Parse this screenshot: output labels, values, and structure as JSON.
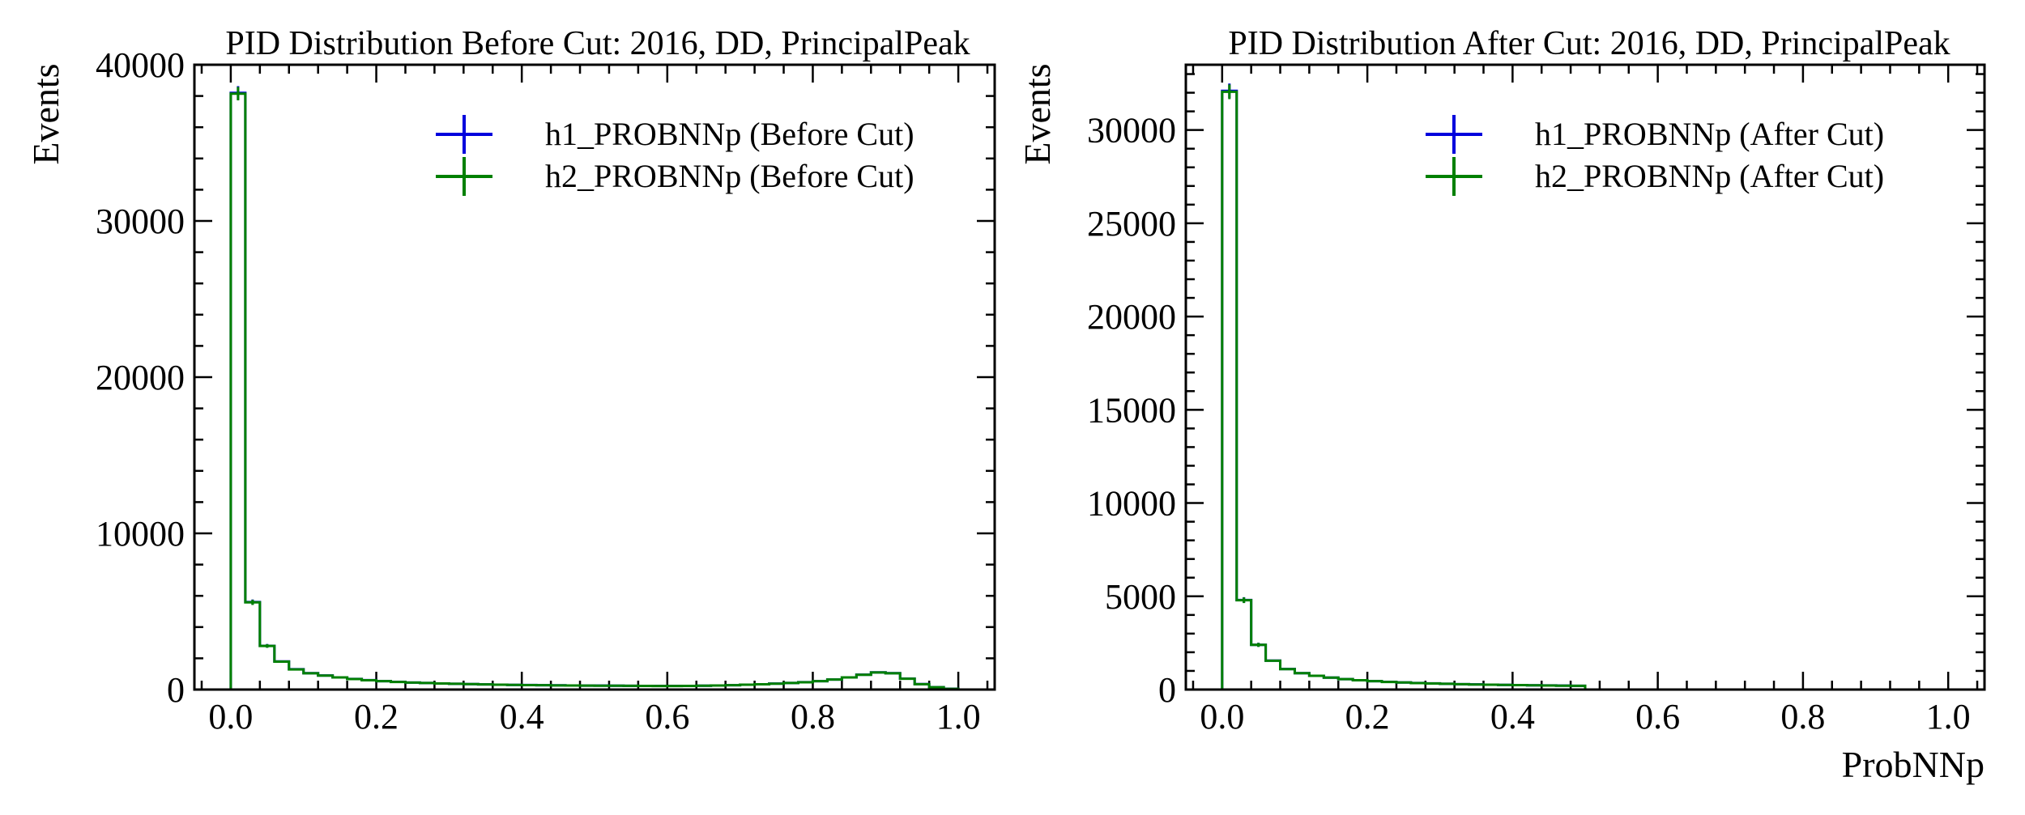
{
  "chart_data": [
    {
      "type": "step-histogram",
      "title": "PID Distribution Before Cut: 2016, DD, PrincipalPeak",
      "xlabel": "",
      "ylabel": "Events",
      "xlim": [
        -0.05,
        1.05
      ],
      "ylim": [
        0,
        40000
      ],
      "xticks": [
        "0.0",
        "0.2",
        "0.4",
        "0.6",
        "0.8",
        "1.0"
      ],
      "yticks": [
        "0",
        "10000",
        "20000",
        "30000",
        "40000"
      ],
      "legend_position": "top-right",
      "bin_edges": [
        0.0,
        0.02,
        0.04,
        0.06,
        0.08,
        0.1,
        0.12,
        0.14,
        0.16,
        0.18,
        0.2,
        0.22,
        0.24,
        0.26,
        0.28,
        0.3,
        0.32,
        0.34,
        0.36,
        0.38,
        0.4,
        0.42,
        0.44,
        0.46,
        0.48,
        0.5,
        0.52,
        0.54,
        0.56,
        0.58,
        0.6,
        0.62,
        0.64,
        0.66,
        0.68,
        0.7,
        0.72,
        0.74,
        0.76,
        0.78,
        0.8,
        0.82,
        0.84,
        0.86,
        0.88,
        0.9,
        0.92,
        0.94,
        0.96,
        0.98,
        1.0
      ],
      "series": [
        {
          "name": "h1_PROBNNp (Before Cut)",
          "color": "#0000dd",
          "values": [
            38200,
            5600,
            2800,
            1800,
            1300,
            1050,
            900,
            780,
            680,
            600,
            540,
            490,
            450,
            420,
            390,
            370,
            350,
            330,
            310,
            300,
            290,
            280,
            270,
            260,
            255,
            250,
            245,
            240,
            235,
            230,
            230,
            235,
            245,
            260,
            280,
            310,
            340,
            380,
            420,
            470,
            540,
            640,
            780,
            950,
            1100,
            1050,
            700,
            350,
            150,
            50
          ]
        },
        {
          "name": "h2_PROBNNp (Before Cut)",
          "color": "#008000",
          "values": [
            38150,
            5580,
            2790,
            1790,
            1290,
            1045,
            895,
            775,
            675,
            598,
            538,
            488,
            448,
            418,
            388,
            368,
            348,
            328,
            308,
            298,
            288,
            278,
            268,
            258,
            253,
            248,
            243,
            238,
            233,
            228,
            228,
            233,
            243,
            258,
            278,
            308,
            338,
            378,
            418,
            468,
            538,
            638,
            775,
            945,
            1095,
            1045,
            695,
            345,
            148,
            48
          ]
        }
      ]
    },
    {
      "type": "step-histogram",
      "title": "PID Distribution After Cut: 2016, DD, PrincipalPeak",
      "xlabel": "ProbNNp",
      "ylabel": "Events",
      "xlim": [
        -0.05,
        1.05
      ],
      "ylim": [
        0,
        33500
      ],
      "xticks": [
        "0.0",
        "0.2",
        "0.4",
        "0.6",
        "0.8",
        "1.0"
      ],
      "yticks": [
        "0",
        "5000",
        "10000",
        "15000",
        "20000",
        "25000",
        "30000"
      ],
      "legend_position": "top-right",
      "bin_edges": [
        0.0,
        0.02,
        0.04,
        0.06,
        0.08,
        0.1,
        0.12,
        0.14,
        0.16,
        0.18,
        0.2,
        0.22,
        0.24,
        0.26,
        0.28,
        0.3,
        0.32,
        0.34,
        0.36,
        0.38,
        0.4,
        0.42,
        0.44,
        0.46,
        0.48,
        0.5
      ],
      "series": [
        {
          "name": "h1_PROBNNp (After Cut)",
          "color": "#0000dd",
          "values": [
            32100,
            4800,
            2400,
            1550,
            1100,
            880,
            740,
            640,
            560,
            500,
            450,
            410,
            380,
            350,
            330,
            310,
            290,
            275,
            260,
            250,
            240,
            230,
            220,
            210,
            200
          ]
        },
        {
          "name": "h2_PROBNNp (After Cut)",
          "color": "#008000",
          "values": [
            32050,
            4790,
            2395,
            1545,
            1098,
            878,
            738,
            638,
            558,
            498,
            448,
            408,
            378,
            348,
            328,
            308,
            288,
            273,
            258,
            248,
            238,
            228,
            218,
            208,
            198
          ]
        }
      ]
    }
  ]
}
